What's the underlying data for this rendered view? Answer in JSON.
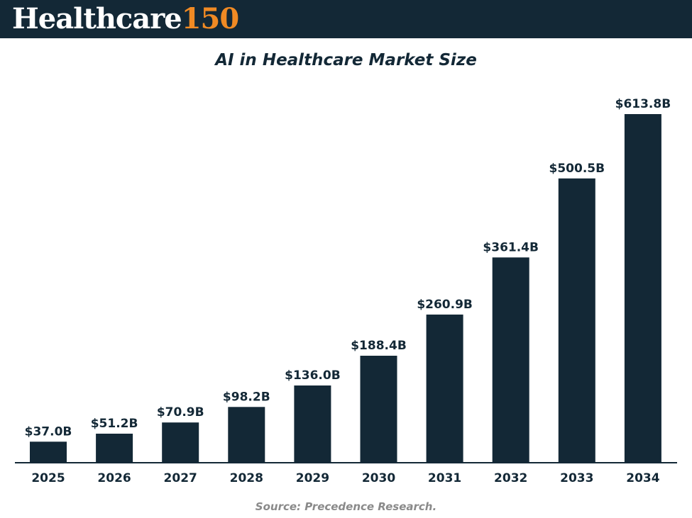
{
  "header": {
    "logo_word": "Healthcare",
    "logo_number": "150"
  },
  "colors": {
    "header_bg": "#132836",
    "bar": "#132836",
    "accent": "#f08a24",
    "source_text": "#8a8a8a"
  },
  "chart_data": {
    "type": "bar",
    "title": "AI in Healthcare Market Size",
    "categories": [
      "2025",
      "2026",
      "2027",
      "2028",
      "2029",
      "2030",
      "2031",
      "2032",
      "2033",
      "2034"
    ],
    "values": [
      37.0,
      51.2,
      70.9,
      98.2,
      136.0,
      188.4,
      260.9,
      361.4,
      500.5,
      613.8
    ],
    "labels": [
      "$37.0B",
      "$51.2B",
      "$70.9B",
      "$98.2B",
      "$136.0B",
      "$188.4B",
      "$260.9B",
      "$361.4B",
      "$500.5B",
      "$613.8B"
    ],
    "unit": "USD billions",
    "xlabel": "",
    "ylabel": "",
    "ylim": [
      0,
      613.8
    ],
    "grid": false,
    "legend": "none",
    "source": "Source: Precedence Research."
  }
}
